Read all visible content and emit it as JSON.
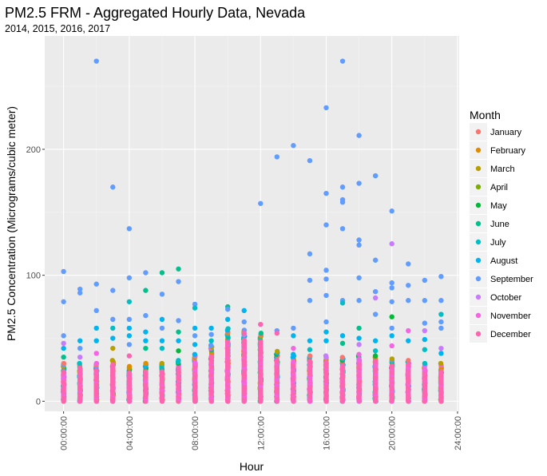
{
  "chart_data": {
    "type": "scatter",
    "title": "PM2.5 FRM - Aggregated Hourly Data, Nevada",
    "subtitle": "2014, 2015, 2016, 2017",
    "xlabel": "Hour",
    "ylabel": "PM2.5 Concentration (Micrograms/cubic meter)",
    "xlim_hours": [
      -1.15,
      24.1
    ],
    "ylim": [
      -8,
      290
    ],
    "x_ticks": [
      "00:00:00",
      "04:00:00",
      "08:00:00",
      "12:00:00",
      "16:00:00",
      "20:00:00",
      "24:00:00"
    ],
    "y_ticks": [
      0,
      100,
      200
    ],
    "grid": true,
    "legend": {
      "title": "Month",
      "placement": "right",
      "entries": [
        {
          "name": "January",
          "color": "#F8766D"
        },
        {
          "name": "February",
          "color": "#DE8C00"
        },
        {
          "name": "March",
          "color": "#B79F00"
        },
        {
          "name": "April",
          "color": "#7CAE00"
        },
        {
          "name": "May",
          "color": "#00BA38"
        },
        {
          "name": "June",
          "color": "#00C08B"
        },
        {
          "name": "July",
          "color": "#00BFC4"
        },
        {
          "name": "August",
          "color": "#00B4F0"
        },
        {
          "name": "September",
          "color": "#619CFF"
        },
        {
          "name": "October",
          "color": "#C77CFF"
        },
        {
          "name": "November",
          "color": "#F564E3"
        },
        {
          "name": "December",
          "color": "#FF64B0"
        }
      ]
    },
    "dense_column_top_by_hour": [
      30,
      31,
      30,
      33,
      28,
      30,
      30,
      33,
      38,
      45,
      58,
      57,
      55,
      40,
      38,
      36,
      36,
      35,
      38,
      36,
      34,
      33,
      30,
      30
    ],
    "outliers": [
      {
        "hour": 0,
        "value": 103,
        "month": "September"
      },
      {
        "hour": 0,
        "value": 79,
        "month": "September"
      },
      {
        "hour": 0,
        "value": 52,
        "month": "September"
      },
      {
        "hour": 0,
        "value": 46,
        "month": "October"
      },
      {
        "hour": 0,
        "value": 42,
        "month": "August"
      },
      {
        "hour": 0,
        "value": 35,
        "month": "June"
      },
      {
        "hour": 1,
        "value": 89,
        "month": "September"
      },
      {
        "hour": 1,
        "value": 86,
        "month": "September"
      },
      {
        "hour": 1,
        "value": 48,
        "month": "August"
      },
      {
        "hour": 1,
        "value": 42,
        "month": "September"
      },
      {
        "hour": 1,
        "value": 35,
        "month": "October"
      },
      {
        "hour": 2,
        "value": 270,
        "month": "September"
      },
      {
        "hour": 2,
        "value": 93,
        "month": "September"
      },
      {
        "hour": 2,
        "value": 72,
        "month": "September"
      },
      {
        "hour": 2,
        "value": 58,
        "month": "August"
      },
      {
        "hour": 2,
        "value": 48,
        "month": "August"
      },
      {
        "hour": 2,
        "value": 38,
        "month": "November"
      },
      {
        "hour": 3,
        "value": 170,
        "month": "September"
      },
      {
        "hour": 3,
        "value": 88,
        "month": "September"
      },
      {
        "hour": 3,
        "value": 65,
        "month": "September"
      },
      {
        "hour": 3,
        "value": 58,
        "month": "July"
      },
      {
        "hour": 3,
        "value": 50,
        "month": "August"
      },
      {
        "hour": 3,
        "value": 42,
        "month": "March"
      },
      {
        "hour": 4,
        "value": 137,
        "month": "September"
      },
      {
        "hour": 4,
        "value": 98,
        "month": "September"
      },
      {
        "hour": 4,
        "value": 79,
        "month": "July"
      },
      {
        "hour": 4,
        "value": 65,
        "month": "September"
      },
      {
        "hour": 4,
        "value": 58,
        "month": "August"
      },
      {
        "hour": 4,
        "value": 52,
        "month": "August"
      },
      {
        "hour": 4,
        "value": 45,
        "month": "September"
      },
      {
        "hour": 4,
        "value": 36,
        "month": "December"
      },
      {
        "hour": 5,
        "value": 102,
        "month": "September"
      },
      {
        "hour": 5,
        "value": 88,
        "month": "June"
      },
      {
        "hour": 5,
        "value": 68,
        "month": "September"
      },
      {
        "hour": 5,
        "value": 55,
        "month": "August"
      },
      {
        "hour": 5,
        "value": 48,
        "month": "August"
      },
      {
        "hour": 5,
        "value": 42,
        "month": "June"
      },
      {
        "hour": 6,
        "value": 102,
        "month": "June"
      },
      {
        "hour": 6,
        "value": 85,
        "month": "September"
      },
      {
        "hour": 6,
        "value": 65,
        "month": "August"
      },
      {
        "hour": 6,
        "value": 58,
        "month": "September"
      },
      {
        "hour": 6,
        "value": 48,
        "month": "August"
      },
      {
        "hour": 6,
        "value": 42,
        "month": "July"
      },
      {
        "hour": 7,
        "value": 105,
        "month": "June"
      },
      {
        "hour": 7,
        "value": 95,
        "month": "September"
      },
      {
        "hour": 7,
        "value": 64,
        "month": "September"
      },
      {
        "hour": 7,
        "value": 55,
        "month": "June"
      },
      {
        "hour": 7,
        "value": 48,
        "month": "August"
      },
      {
        "hour": 7,
        "value": 40,
        "month": "May"
      },
      {
        "hour": 8,
        "value": 77,
        "month": "September"
      },
      {
        "hour": 8,
        "value": 74,
        "month": "July"
      },
      {
        "hour": 8,
        "value": 58,
        "month": "August"
      },
      {
        "hour": 8,
        "value": 52,
        "month": "September"
      },
      {
        "hour": 8,
        "value": 45,
        "month": "August"
      },
      {
        "hour": 9,
        "value": 58,
        "month": "August"
      },
      {
        "hour": 9,
        "value": 53,
        "month": "September"
      },
      {
        "hour": 9,
        "value": 48,
        "month": "July"
      },
      {
        "hour": 10,
        "value": 75,
        "month": "June"
      },
      {
        "hour": 10,
        "value": 73,
        "month": "September"
      },
      {
        "hour": 10,
        "value": 65,
        "month": "August"
      },
      {
        "hour": 11,
        "value": 72,
        "month": "August"
      },
      {
        "hour": 11,
        "value": 63,
        "month": "September"
      },
      {
        "hour": 11,
        "value": 54,
        "month": "December"
      },
      {
        "hour": 12,
        "value": 157,
        "month": "September"
      },
      {
        "hour": 12,
        "value": 61,
        "month": "December"
      },
      {
        "hour": 13,
        "value": 194,
        "month": "September"
      },
      {
        "hour": 13,
        "value": 56,
        "month": "September"
      },
      {
        "hour": 13,
        "value": 54,
        "month": "December"
      },
      {
        "hour": 14,
        "value": 203,
        "month": "September"
      },
      {
        "hour": 14,
        "value": 58,
        "month": "September"
      },
      {
        "hour": 14,
        "value": 52,
        "month": "August"
      },
      {
        "hour": 14,
        "value": 42,
        "month": "November"
      },
      {
        "hour": 15,
        "value": 191,
        "month": "September"
      },
      {
        "hour": 15,
        "value": 117,
        "month": "September"
      },
      {
        "hour": 15,
        "value": 96,
        "month": "September"
      },
      {
        "hour": 15,
        "value": 80,
        "month": "September"
      },
      {
        "hour": 15,
        "value": 48,
        "month": "August"
      },
      {
        "hour": 15,
        "value": 41,
        "month": "July"
      },
      {
        "hour": 16,
        "value": 233,
        "month": "September"
      },
      {
        "hour": 16,
        "value": 165,
        "month": "September"
      },
      {
        "hour": 16,
        "value": 140,
        "month": "September"
      },
      {
        "hour": 16,
        "value": 104,
        "month": "September"
      },
      {
        "hour": 16,
        "value": 97,
        "month": "September"
      },
      {
        "hour": 16,
        "value": 84,
        "month": "September"
      },
      {
        "hour": 16,
        "value": 63,
        "month": "September"
      },
      {
        "hour": 16,
        "value": 55,
        "month": "August"
      },
      {
        "hour": 16,
        "value": 48,
        "month": "August"
      },
      {
        "hour": 17,
        "value": 270,
        "month": "September"
      },
      {
        "hour": 17,
        "value": 170,
        "month": "September"
      },
      {
        "hour": 17,
        "value": 160,
        "month": "September"
      },
      {
        "hour": 17,
        "value": 158,
        "month": "September"
      },
      {
        "hour": 17,
        "value": 137,
        "month": "September"
      },
      {
        "hour": 17,
        "value": 80,
        "month": "September"
      },
      {
        "hour": 17,
        "value": 78,
        "month": "July"
      },
      {
        "hour": 17,
        "value": 52,
        "month": "August"
      },
      {
        "hour": 17,
        "value": 46,
        "month": "June"
      },
      {
        "hour": 18,
        "value": 211,
        "month": "September"
      },
      {
        "hour": 18,
        "value": 173,
        "month": "September"
      },
      {
        "hour": 18,
        "value": 128,
        "month": "September"
      },
      {
        "hour": 18,
        "value": 124,
        "month": "September"
      },
      {
        "hour": 18,
        "value": 98,
        "month": "September"
      },
      {
        "hour": 18,
        "value": 80,
        "month": "September"
      },
      {
        "hour": 18,
        "value": 58,
        "month": "June"
      },
      {
        "hour": 18,
        "value": 50,
        "month": "August"
      },
      {
        "hour": 18,
        "value": 45,
        "month": "October"
      },
      {
        "hour": 19,
        "value": 179,
        "month": "September"
      },
      {
        "hour": 19,
        "value": 112,
        "month": "September"
      },
      {
        "hour": 19,
        "value": 87,
        "month": "September"
      },
      {
        "hour": 19,
        "value": 82,
        "month": "October"
      },
      {
        "hour": 19,
        "value": 69,
        "month": "September"
      },
      {
        "hour": 19,
        "value": 48,
        "month": "August"
      },
      {
        "hour": 19,
        "value": 40,
        "month": "July"
      },
      {
        "hour": 20,
        "value": 151,
        "month": "September"
      },
      {
        "hour": 20,
        "value": 125,
        "month": "October"
      },
      {
        "hour": 20,
        "value": 94,
        "month": "September"
      },
      {
        "hour": 20,
        "value": 90,
        "month": "September"
      },
      {
        "hour": 20,
        "value": 79,
        "month": "September"
      },
      {
        "hour": 20,
        "value": 67,
        "month": "May"
      },
      {
        "hour": 20,
        "value": 58,
        "month": "September"
      },
      {
        "hour": 20,
        "value": 52,
        "month": "August"
      },
      {
        "hour": 20,
        "value": 44,
        "month": "November"
      },
      {
        "hour": 21,
        "value": 109,
        "month": "September"
      },
      {
        "hour": 21,
        "value": 92,
        "month": "September"
      },
      {
        "hour": 21,
        "value": 80,
        "month": "September"
      },
      {
        "hour": 21,
        "value": 56,
        "month": "November"
      },
      {
        "hour": 21,
        "value": 48,
        "month": "August"
      },
      {
        "hour": 22,
        "value": 96,
        "month": "September"
      },
      {
        "hour": 22,
        "value": 80,
        "month": "September"
      },
      {
        "hour": 22,
        "value": 62,
        "month": "September"
      },
      {
        "hour": 22,
        "value": 56,
        "month": "October"
      },
      {
        "hour": 22,
        "value": 49,
        "month": "August"
      },
      {
        "hour": 22,
        "value": 41,
        "month": "July"
      },
      {
        "hour": 23,
        "value": 99,
        "month": "September"
      },
      {
        "hour": 23,
        "value": 80,
        "month": "September"
      },
      {
        "hour": 23,
        "value": 69,
        "month": "July"
      },
      {
        "hour": 23,
        "value": 63,
        "month": "September"
      },
      {
        "hour": 23,
        "value": 58,
        "month": "September"
      },
      {
        "hour": 23,
        "value": 42,
        "month": "October"
      },
      {
        "hour": 23,
        "value": 38,
        "month": "August"
      }
    ]
  }
}
